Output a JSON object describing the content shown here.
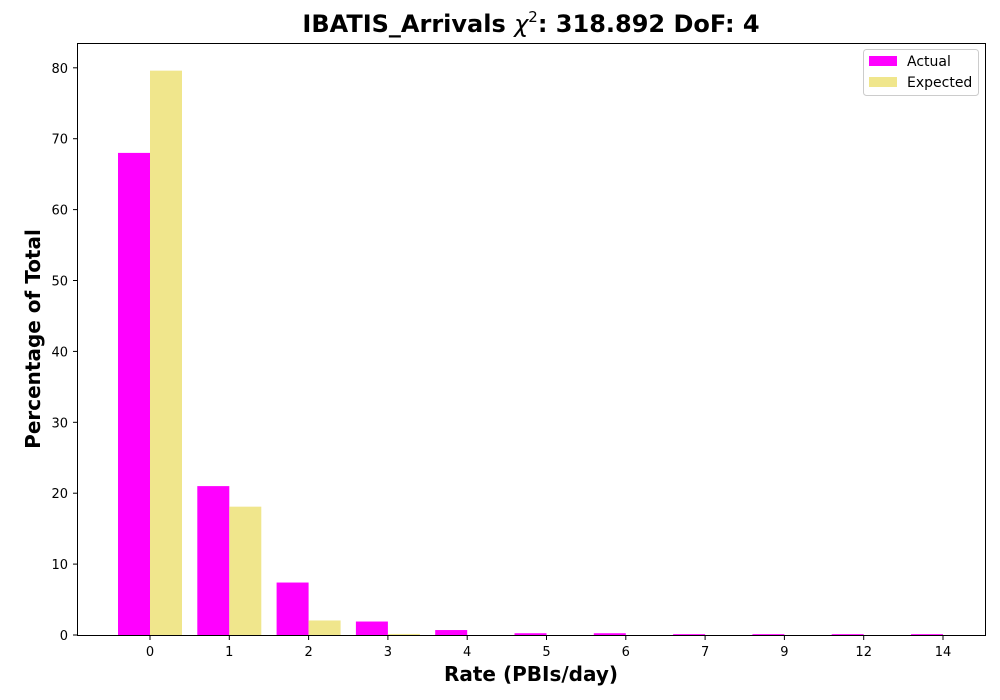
{
  "chart_data": {
    "type": "bar",
    "title_prefix": "IBATIS_Arrivals ",
    "title_symbol": "χ",
    "title_superscript": "2",
    "title_suffix": ": 318.892 DoF: 4",
    "xlabel": "Rate (PBIs/day)",
    "ylabel": "Percentage of Total",
    "categories": [
      "0",
      "1",
      "2",
      "3",
      "4",
      "5",
      "6",
      "7",
      "9",
      "12",
      "14"
    ],
    "series": [
      {
        "name": "Actual",
        "color": "#ff00ff",
        "values": [
          68.0,
          21.0,
          7.4,
          1.9,
          0.7,
          0.25,
          0.25,
          0.12,
          0.12,
          0.12,
          0.12
        ]
      },
      {
        "name": "Expected",
        "color": "#f0e68c",
        "values": [
          79.6,
          18.1,
          2.05,
          0.15,
          0.0,
          0.0,
          0.0,
          0.0,
          0.0,
          0.0,
          0.0
        ]
      }
    ],
    "ylim": [
      0,
      83.5
    ],
    "yticks": [
      0,
      10,
      20,
      30,
      40,
      50,
      60,
      70,
      80
    ],
    "grid": false,
    "legend_position": "top-right"
  }
}
